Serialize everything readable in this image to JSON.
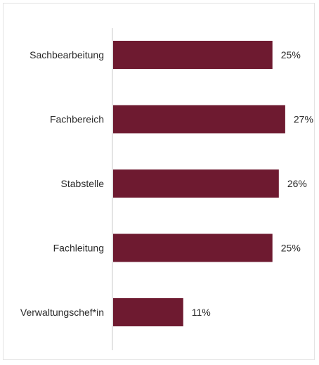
{
  "chart_data": {
    "type": "bar",
    "orientation": "horizontal",
    "categories": [
      "Sachbearbeitung",
      "Fachbereich",
      "Stabstelle",
      "Fachleitung",
      "Verwaltungschef*in"
    ],
    "values": [
      25,
      27,
      26,
      25,
      11
    ],
    "value_labels": [
      "25%",
      "27%",
      "26%",
      "25%",
      "11%"
    ],
    "unit": "%",
    "title": "",
    "xlabel": "",
    "ylabel": "",
    "xlim": [
      0,
      27
    ],
    "grid": false,
    "legend": "none",
    "colors": {
      "bar": "#6e1a30",
      "axis": "#c8c8c8",
      "text": "#2a2a2a"
    }
  }
}
